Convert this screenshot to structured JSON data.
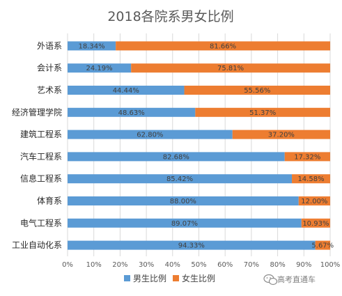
{
  "chart_data": {
    "type": "bar",
    "orientation": "horizontal",
    "stacked": true,
    "title": "2018各院系男女比例",
    "categories": [
      "外语系",
      "会计系",
      "艺术系",
      "经济管理学院",
      "建筑工程系",
      "汽车工程系",
      "信息工程系",
      "体育系",
      "电气工程系",
      "工业自动化系"
    ],
    "series": [
      {
        "name": "男生比例",
        "color": "#5B9BD5",
        "values": [
          18.34,
          24.19,
          44.44,
          48.63,
          62.8,
          82.68,
          85.42,
          88.0,
          89.07,
          94.33
        ],
        "labels": [
          "18.34%",
          "24.19%",
          "44.44%",
          "48.63%",
          "62.80%",
          "82.68%",
          "85.42%",
          "88.00%",
          "89.07%",
          "94.33%"
        ]
      },
      {
        "name": "女生比例",
        "color": "#ED7D31",
        "values": [
          81.66,
          75.81,
          55.56,
          51.37,
          37.2,
          17.32,
          14.58,
          12.0,
          10.93,
          5.67
        ],
        "labels": [
          "81.66%",
          "75.81%",
          "55.56%",
          "51.37%",
          "37.20%",
          "17.32%",
          "14.58%",
          "12.00%",
          "10.93%",
          "5.67%"
        ]
      }
    ],
    "xlim": [
      0,
      100
    ],
    "x_ticks": [
      "0%",
      "10%",
      "20%",
      "30%",
      "40%",
      "50%",
      "60%",
      "70%",
      "80%",
      "90%",
      "100%"
    ],
    "grid": true,
    "legend_position": "bottom"
  },
  "watermark": {
    "text": "高考直通车",
    "icon": "wechat-icon"
  }
}
